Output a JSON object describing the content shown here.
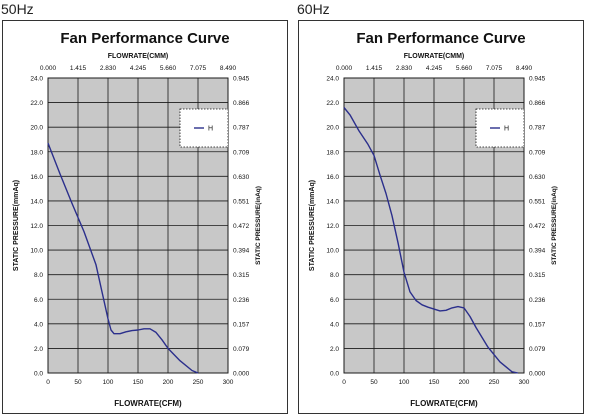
{
  "colors": {
    "plot_bg": "#c8c8c8",
    "grid": "#1a1a1a",
    "line": "#2b2f8c",
    "frame": "#333333"
  },
  "chart_data": [
    {
      "type": "line",
      "frequency_label": "50Hz",
      "title": "Fan Performance Curve",
      "top_axis_label": "FLOWRATE(CMM)",
      "top_ticks": [
        "0.000",
        "1.415",
        "2.830",
        "4.245",
        "5.660",
        "7.075",
        "8.490"
      ],
      "xlabel": "FLOWRATE(CFM)",
      "x_ticks": [
        "0",
        "50",
        "100",
        "150",
        "200",
        "250",
        "300"
      ],
      "xlim": [
        0,
        300
      ],
      "ylabel": "STATIC PRESSURE(mmAq)",
      "y_ticks": [
        "0.0",
        "2.0",
        "4.0",
        "6.0",
        "8.0",
        "10.0",
        "12.0",
        "14.0",
        "16.0",
        "18.0",
        "20.0",
        "22.0",
        "24.0"
      ],
      "ylim": [
        0,
        24
      ],
      "right_axis_label": "STATIC PRESSURE(inAq)",
      "right_ticks": [
        "0.000",
        "0.079",
        "0.157",
        "0.236",
        "0.315",
        "0.394",
        "0.472",
        "0.551",
        "0.630",
        "0.709",
        "0.787",
        "0.866",
        "0.945"
      ],
      "grid": true,
      "legend_position": "top-right",
      "series": [
        {
          "name": "H",
          "x": [
            0,
            20,
            40,
            60,
            80,
            90,
            100,
            105,
            110,
            120,
            130,
            140,
            150,
            160,
            170,
            180,
            190,
            200,
            220,
            240,
            250
          ],
          "y": [
            18.7,
            16.2,
            13.8,
            11.5,
            8.8,
            6.6,
            4.4,
            3.5,
            3.2,
            3.2,
            3.35,
            3.45,
            3.5,
            3.6,
            3.6,
            3.3,
            2.7,
            2.0,
            1.0,
            0.2,
            0.0
          ]
        }
      ]
    },
    {
      "type": "line",
      "frequency_label": "60Hz",
      "title": "Fan Performance Curve",
      "top_axis_label": "FLOWRATE(CMM)",
      "top_ticks": [
        "0.000",
        "1.415",
        "2.830",
        "4.245",
        "5.660",
        "7.075",
        "8.490"
      ],
      "xlabel": "FLOWRATE(CFM)",
      "x_ticks": [
        "0",
        "50",
        "100",
        "150",
        "200",
        "250",
        "300"
      ],
      "xlim": [
        0,
        300
      ],
      "ylabel": "STATIC PRESSURE(mmAq)",
      "y_ticks": [
        "0.0",
        "2.0",
        "4.0",
        "6.0",
        "8.0",
        "10.0",
        "12.0",
        "14.0",
        "16.0",
        "18.0",
        "20.0",
        "22.0",
        "24.0"
      ],
      "ylim": [
        0,
        24
      ],
      "right_axis_label": "STATIC PRESSURE(inAq)",
      "right_ticks": [
        "0.000",
        "0.079",
        "0.157",
        "0.236",
        "0.315",
        "0.394",
        "0.472",
        "0.551",
        "0.630",
        "0.709",
        "0.787",
        "0.866",
        "0.945"
      ],
      "grid": true,
      "legend_position": "top-right",
      "series": [
        {
          "name": "H",
          "x": [
            0,
            10,
            25,
            40,
            50,
            60,
            70,
            80,
            90,
            100,
            110,
            120,
            130,
            140,
            150,
            160,
            170,
            180,
            190,
            200,
            210,
            220,
            240,
            260,
            280,
            290
          ],
          "y": [
            21.6,
            21.0,
            19.7,
            18.6,
            17.7,
            16.1,
            14.6,
            12.8,
            10.6,
            8.2,
            6.6,
            5.9,
            5.55,
            5.35,
            5.2,
            5.05,
            5.1,
            5.3,
            5.4,
            5.3,
            4.6,
            3.7,
            2.1,
            0.9,
            0.1,
            0.0
          ]
        }
      ]
    }
  ]
}
